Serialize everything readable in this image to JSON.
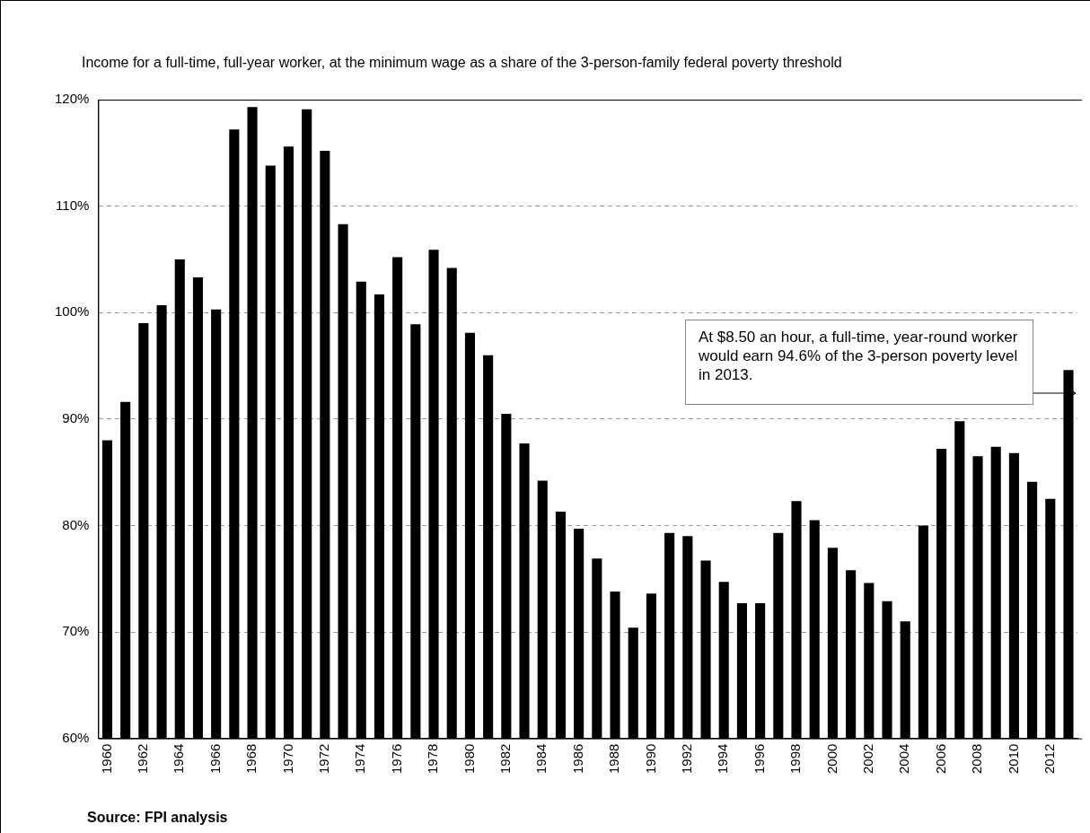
{
  "chart_data": {
    "type": "bar",
    "title": "Income for a full-time, full-year worker, at the minimum wage as a share of the 3-person-family federal poverty threshold",
    "categories": [
      "1960",
      null,
      "1962",
      null,
      "1964",
      null,
      "1966",
      null,
      "1968",
      null,
      "1970",
      null,
      "1972",
      null,
      "1974",
      null,
      "1976",
      null,
      "1978",
      null,
      "1980",
      null,
      "1982",
      null,
      "1984",
      null,
      "1986",
      null,
      "1988",
      null,
      "1990",
      null,
      "1992",
      null,
      "1994",
      null,
      "1996",
      null,
      "1998",
      null,
      "2000",
      null,
      "2002",
      null,
      "2004",
      null,
      "2006",
      null,
      "2008",
      null,
      "2010",
      null,
      "2012",
      null
    ],
    "values": [
      88.0,
      91.6,
      99.0,
      100.7,
      105.0,
      103.3,
      100.3,
      117.2,
      119.3,
      113.8,
      115.6,
      119.1,
      115.2,
      108.3,
      102.9,
      101.7,
      105.2,
      98.9,
      105.9,
      104.2,
      98.1,
      96.0,
      90.5,
      87.7,
      84.2,
      81.3,
      79.7,
      76.9,
      73.8,
      70.4,
      73.6,
      79.3,
      79.0,
      76.7,
      74.7,
      72.7,
      72.7,
      79.3,
      82.3,
      80.5,
      77.9,
      75.8,
      74.6,
      72.9,
      71.0,
      80.0,
      87.2,
      89.8,
      86.5,
      87.4,
      86.8,
      84.1,
      82.5,
      94.6
    ],
    "color": "#000000",
    "ylim": [
      60,
      120
    ],
    "yticks": [
      {
        "value": 60,
        "label": "60%"
      },
      {
        "value": 70,
        "label": "70%"
      },
      {
        "value": 80,
        "label": "80%"
      },
      {
        "value": 90,
        "label": "90%"
      },
      {
        "value": 100,
        "label": "100%"
      },
      {
        "value": 110,
        "label": "110%"
      },
      {
        "value": 120,
        "label": "120%"
      }
    ],
    "grid": "y",
    "annotations": [
      "At $8.50 an hour, a full-time, year-round worker would earn 94.6% of the 3-person poverty level in 2013.",
      "Source: FPI analysis"
    ]
  }
}
